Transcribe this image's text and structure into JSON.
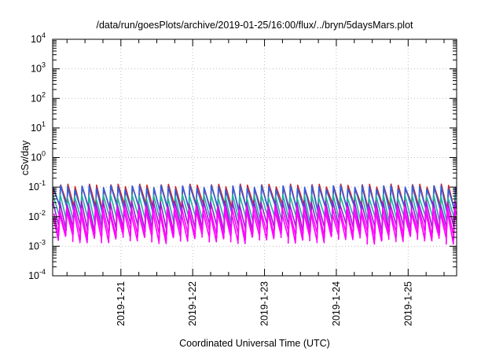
{
  "chart_data": {
    "type": "line",
    "title": "/data/run/goesPlots/archive/2019-01-25/16:00/flux/../bryn/5daysMars.plot",
    "xlabel": "Coordinated Universal Time (UTC)",
    "ylabel": "cSv/day",
    "y_scale": "log",
    "ylim": [
      0.0001,
      10000
    ],
    "xlim": [
      "2019-01-20T01:12",
      "2019-01-25T16:12"
    ],
    "x_ticks": [
      "2019-1-21",
      "2019-1-22",
      "2019-1-23",
      "2019-1-24",
      "2019-1-25"
    ],
    "y_ticks": [
      {
        "base": "10",
        "exp": "-4"
      },
      {
        "base": "10",
        "exp": "-3"
      },
      {
        "base": "10",
        "exp": "-2"
      },
      {
        "base": "10",
        "exp": "-1"
      },
      {
        "base": "10",
        "exp": "0"
      },
      {
        "base": "10",
        "exp": "1"
      },
      {
        "base": "10",
        "exp": "2"
      },
      {
        "base": "10",
        "exp": "3"
      },
      {
        "base": "10",
        "exp": "4"
      }
    ],
    "grid": true,
    "sawtooth_period_hours": 2.4,
    "series": [
      {
        "color": "#d42020",
        "peak": 0.11,
        "trough": 0.02
      },
      {
        "color": "#2f5fe0",
        "peak": 0.1,
        "trough": 0.018
      },
      {
        "color": "#20b0a0",
        "peak": 0.05,
        "trough": 0.008
      },
      {
        "color": "#9020d0",
        "peak": 0.03,
        "trough": 0.004
      },
      {
        "color": "#ff00ff",
        "peak": 0.02,
        "trough": 0.0025
      },
      {
        "color": "#ff00ff",
        "peak": 0.015,
        "trough": 0.0018
      }
    ]
  }
}
